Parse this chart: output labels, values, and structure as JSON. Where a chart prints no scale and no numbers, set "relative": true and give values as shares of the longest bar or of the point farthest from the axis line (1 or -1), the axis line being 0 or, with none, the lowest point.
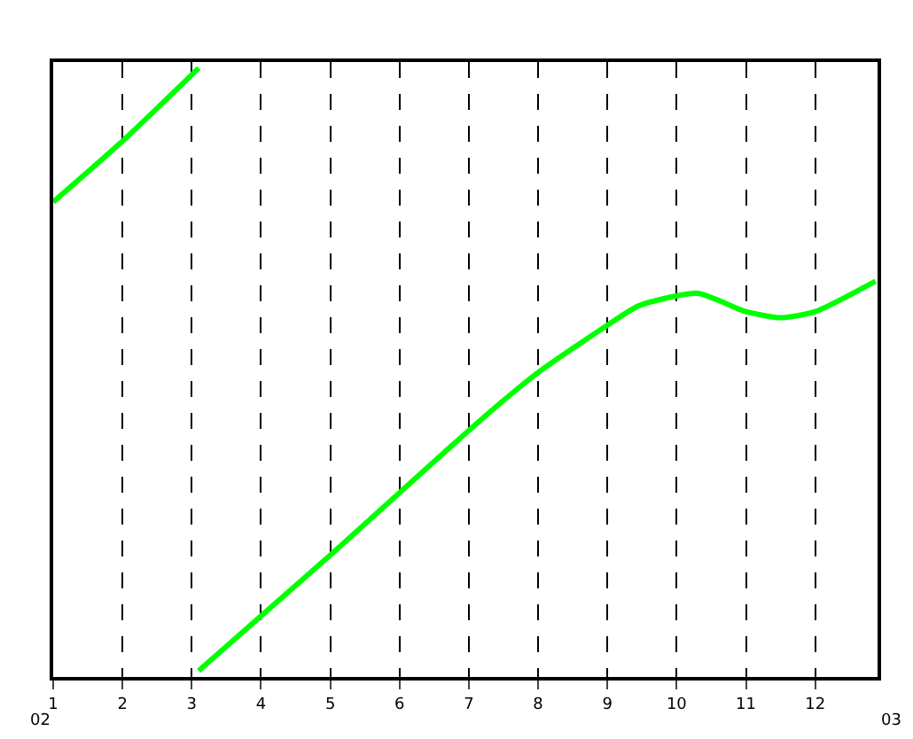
{
  "chart_data": {
    "type": "line",
    "relative": true,
    "xlim": [
      1,
      12.9
    ],
    "xticks": [
      1,
      2,
      3,
      4,
      5,
      6,
      7,
      8,
      9,
      10,
      11,
      12
    ],
    "grid": "x",
    "line_style": "solid",
    "marker": "none",
    "series": [
      {
        "color": "#00ff00",
        "x": [
          1,
          2,
          3.1
        ],
        "values": [
          0.78,
          0.88,
          1.0
        ]
      },
      {
        "color": "#00ff00",
        "x": [
          3.1,
          5,
          7.15,
          8,
          9.03,
          9.46,
          10.3,
          11,
          11.5,
          12,
          12.87
        ],
        "values": [
          0.01,
          0.2,
          0.42,
          0.5,
          0.58,
          0.61,
          0.63,
          0.6,
          0.59,
          0.6,
          0.65
        ]
      }
    ],
    "annotations": [
      "02",
      "03"
    ]
  }
}
